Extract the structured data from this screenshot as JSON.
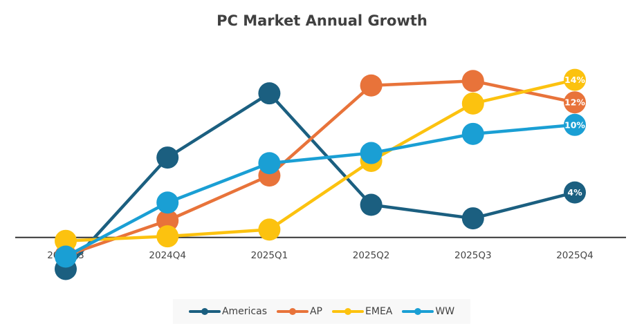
{
  "chart_data": {
    "type": "line",
    "title": "PC Market Annual Growth",
    "categories": [
      "2024Q3",
      "2024Q4",
      "2025Q1",
      "2025Q2",
      "2025Q3",
      "2025Q4"
    ],
    "unit": "%",
    "ylim": [
      -4,
      16
    ],
    "grid": false,
    "legend": "bottom",
    "series": [
      {
        "name": "Americas",
        "color": "#1b5f80",
        "values": [
          -2.8,
          7.1,
          12.8,
          2.9,
          1.7,
          4
        ],
        "last_label": "4%"
      },
      {
        "name": "AP",
        "color": "#e8733a",
        "values": [
          -1.6,
          1.5,
          5.5,
          13.5,
          13.9,
          12
        ],
        "last_label": "12%"
      },
      {
        "name": "EMEA",
        "color": "#fcc20f",
        "values": [
          -0.3,
          0.1,
          0.7,
          6.8,
          11.9,
          14
        ],
        "last_label": "14%"
      },
      {
        "name": "WW",
        "color": "#1a9fd4",
        "values": [
          -1.7,
          3.1,
          6.6,
          7.5,
          9.2,
          10
        ],
        "last_label": "10%"
      }
    ]
  }
}
